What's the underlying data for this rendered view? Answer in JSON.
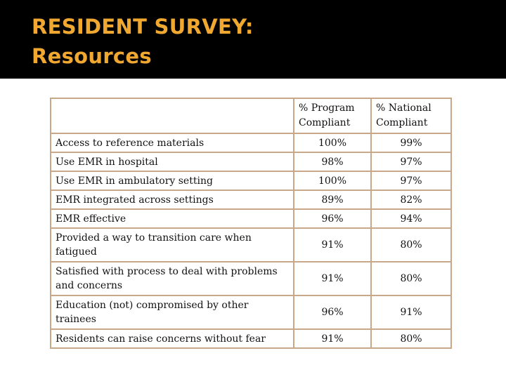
{
  "slide": {
    "title_line1": "RESIDENT SURVEY:",
    "title_line2": "Resources",
    "title_color": "#f0a830",
    "background": "#000000",
    "table_border_color": "#c9a789"
  },
  "table": {
    "headers": [
      "",
      "% Program Compliant",
      "% National Compliant"
    ],
    "rows": [
      {
        "label": "Access to reference materials",
        "program": "100%",
        "national": "99%"
      },
      {
        "label": "Use EMR in hospital",
        "program": "98%",
        "national": "97%"
      },
      {
        "label": "Use EMR in ambulatory setting",
        "program": "100%",
        "national": "97%"
      },
      {
        "label": "EMR integrated across settings",
        "program": "89%",
        "national": "82%"
      },
      {
        "label": "EMR effective",
        "program": "96%",
        "national": "94%"
      },
      {
        "label": "Provided a way to transition care when fatigued",
        "program": "91%",
        "national": "80%"
      },
      {
        "label": "Satisfied with process to deal with problems and concerns",
        "program": "91%",
        "national": "80%"
      },
      {
        "label": "Education (not) compromised by other trainees",
        "program": "96%",
        "national": "91%"
      },
      {
        "label": "Residents can raise concerns without fear",
        "program": "91%",
        "national": "80%"
      }
    ]
  }
}
